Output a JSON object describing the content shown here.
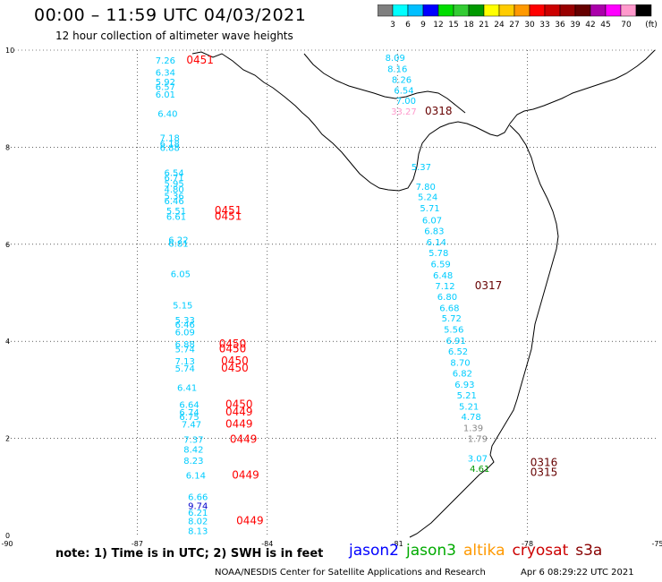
{
  "header": {
    "title": "00:00 – 11:59 UTC 04/03/2021",
    "subtitle": "12 hour collection of altimeter wave heights"
  },
  "colorbar": {
    "unit": "(ft)",
    "colors": [
      "#7f7f7f",
      "#00ffff",
      "#00bfff",
      "#0000ff",
      "#00dd00",
      "#33cc33",
      "#009900",
      "#ffff00",
      "#ffcc00",
      "#ff9900",
      "#ff0000",
      "#cc0000",
      "#990000",
      "#660000",
      "#aa00aa",
      "#ff00ff",
      "#ff99cc",
      "#000000"
    ],
    "labels": [
      "3",
      "6",
      "9",
      "12",
      "15",
      "18",
      "21",
      "24",
      "27",
      "30",
      "33",
      "36",
      "39",
      "42",
      "45",
      "70"
    ]
  },
  "axes": {
    "x_labels": [
      "-90",
      "-87",
      "-84",
      "-81",
      "-78",
      "-75"
    ],
    "y_labels": [
      "0",
      "2",
      "4",
      "6",
      "8",
      "10"
    ],
    "x_range": [
      -90,
      -75
    ],
    "y_range": [
      0,
      10
    ]
  },
  "tracks": {
    "left_swh": [
      {
        "v": "7.26",
        "lon": -86.35,
        "lat": 9.8,
        "c": "#00ccff"
      },
      {
        "v": "6.34",
        "lon": -86.35,
        "lat": 9.55,
        "c": "#00ccff"
      },
      {
        "v": "5.92",
        "lon": -86.35,
        "lat": 9.35,
        "c": "#00ccff"
      },
      {
        "v": "6.57",
        "lon": -86.35,
        "lat": 9.25,
        "c": "#00ccff"
      },
      {
        "v": "6.01",
        "lon": -86.35,
        "lat": 9.1,
        "c": "#00ccff"
      },
      {
        "v": "6.40",
        "lon": -86.3,
        "lat": 8.7,
        "c": "#00ccff"
      },
      {
        "v": "7.18",
        "lon": -86.25,
        "lat": 8.2,
        "c": "#00ccff"
      },
      {
        "v": "6.18",
        "lon": -86.25,
        "lat": 8.08,
        "c": "#00ccff"
      },
      {
        "v": "6.88",
        "lon": -86.25,
        "lat": 8.0,
        "c": "#00ccff"
      },
      {
        "v": "6.54",
        "lon": -86.15,
        "lat": 7.48,
        "c": "#00ccff"
      },
      {
        "v": "6.71",
        "lon": -86.15,
        "lat": 7.38,
        "c": "#00ccff"
      },
      {
        "v": "5.95",
        "lon": -86.15,
        "lat": 7.26,
        "c": "#00ccff"
      },
      {
        "v": "4.80",
        "lon": -86.15,
        "lat": 7.14,
        "c": "#00ccff"
      },
      {
        "v": "5.36",
        "lon": -86.15,
        "lat": 7.0,
        "c": "#00ccff"
      },
      {
        "v": "6.46",
        "lon": -86.15,
        "lat": 6.9,
        "c": "#00ccff"
      },
      {
        "v": "5.51",
        "lon": -86.1,
        "lat": 6.7,
        "c": "#00ccff"
      },
      {
        "v": "6.61",
        "lon": -86.1,
        "lat": 6.58,
        "c": "#00ccff"
      },
      {
        "v": "6.22",
        "lon": -86.05,
        "lat": 6.1,
        "c": "#00ccff"
      },
      {
        "v": "6.81",
        "lon": -86.05,
        "lat": 6.02,
        "c": "#00ccff"
      },
      {
        "v": "6.05",
        "lon": -86.0,
        "lat": 5.4,
        "c": "#00ccff"
      },
      {
        "v": "5.15",
        "lon": -85.95,
        "lat": 4.75,
        "c": "#00ccff"
      },
      {
        "v": "5.33",
        "lon": -85.9,
        "lat": 4.45,
        "c": "#00ccff"
      },
      {
        "v": "6.46",
        "lon": -85.9,
        "lat": 4.35,
        "c": "#00ccff"
      },
      {
        "v": "6.09",
        "lon": -85.9,
        "lat": 4.2,
        "c": "#00ccff"
      },
      {
        "v": "6.88",
        "lon": -85.9,
        "lat": 3.95,
        "c": "#00ccff"
      },
      {
        "v": "5.74",
        "lon": -85.9,
        "lat": 3.85,
        "c": "#00ccff"
      },
      {
        "v": "7.13",
        "lon": -85.9,
        "lat": 3.6,
        "c": "#00ccff"
      },
      {
        "v": "5.74",
        "lon": -85.9,
        "lat": 3.45,
        "c": "#00ccff"
      },
      {
        "v": "6.41",
        "lon": -85.85,
        "lat": 3.05,
        "c": "#00ccff"
      },
      {
        "v": "6.64",
        "lon": -85.8,
        "lat": 2.7,
        "c": "#00ccff"
      },
      {
        "v": "6.74",
        "lon": -85.8,
        "lat": 2.55,
        "c": "#00ccff"
      },
      {
        "v": "6.75",
        "lon": -85.8,
        "lat": 2.45,
        "c": "#00ccff"
      },
      {
        "v": "7.47",
        "lon": -85.75,
        "lat": 2.3,
        "c": "#00ccff"
      },
      {
        "v": "7.37",
        "lon": -85.7,
        "lat": 1.98,
        "c": "#00ccff"
      },
      {
        "v": "8.42",
        "lon": -85.7,
        "lat": 1.78,
        "c": "#00ccff"
      },
      {
        "v": "8.23",
        "lon": -85.7,
        "lat": 1.55,
        "c": "#00ccff"
      },
      {
        "v": "6.14",
        "lon": -85.65,
        "lat": 1.25,
        "c": "#00ccff"
      },
      {
        "v": "6.66",
        "lon": -85.6,
        "lat": 0.8,
        "c": "#00ccff"
      },
      {
        "v": "9.74",
        "lon": -85.6,
        "lat": 0.62,
        "c": "#0000cc"
      },
      {
        "v": "6.21",
        "lon": -85.6,
        "lat": 0.48,
        "c": "#00ccff"
      },
      {
        "v": "8.02",
        "lon": -85.6,
        "lat": 0.3,
        "c": "#00ccff"
      },
      {
        "v": "8.13",
        "lon": -85.6,
        "lat": 0.1,
        "c": "#00ccff"
      }
    ],
    "right_swh": [
      {
        "v": "8.09",
        "lon": -81.05,
        "lat": 9.85,
        "c": "#00ccff"
      },
      {
        "v": "8.16",
        "lon": -81.0,
        "lat": 9.62,
        "c": "#00ccff"
      },
      {
        "v": "8.26",
        "lon": -80.9,
        "lat": 9.4,
        "c": "#00ccff"
      },
      {
        "v": "6.54",
        "lon": -80.85,
        "lat": 9.18,
        "c": "#00ccff"
      },
      {
        "v": "7.00",
        "lon": -80.8,
        "lat": 8.97,
        "c": "#00ccff"
      },
      {
        "v": "33.27",
        "lon": -80.85,
        "lat": 8.75,
        "c": "#ff99cc"
      },
      {
        "v": "5.37",
        "lon": -80.45,
        "lat": 7.6,
        "c": "#00ccff"
      },
      {
        "v": "7.80",
        "lon": -80.35,
        "lat": 7.2,
        "c": "#00ccff"
      },
      {
        "v": "5.24",
        "lon": -80.3,
        "lat": 6.98,
        "c": "#00ccff"
      },
      {
        "v": "5.71",
        "lon": -80.25,
        "lat": 6.75,
        "c": "#00ccff"
      },
      {
        "v": "6.07",
        "lon": -80.2,
        "lat": 6.5,
        "c": "#00ccff"
      },
      {
        "v": "6.83",
        "lon": -80.15,
        "lat": 6.28,
        "c": "#00ccff"
      },
      {
        "v": "6.14",
        "lon": -80.1,
        "lat": 6.05,
        "c": "#00ccff"
      },
      {
        "v": "5.78",
        "lon": -80.05,
        "lat": 5.83,
        "c": "#00ccff"
      },
      {
        "v": "6.59",
        "lon": -80.0,
        "lat": 5.6,
        "c": "#00ccff"
      },
      {
        "v": "6.48",
        "lon": -79.95,
        "lat": 5.37,
        "c": "#00ccff"
      },
      {
        "v": "7.12",
        "lon": -79.9,
        "lat": 5.15,
        "c": "#00ccff"
      },
      {
        "v": "6.80",
        "lon": -79.85,
        "lat": 4.93,
        "c": "#00ccff"
      },
      {
        "v": "6.68",
        "lon": -79.8,
        "lat": 4.7,
        "c": "#00ccff"
      },
      {
        "v": "5.72",
        "lon": -79.75,
        "lat": 4.48,
        "c": "#00ccff"
      },
      {
        "v": "5.56",
        "lon": -79.7,
        "lat": 4.25,
        "c": "#00ccff"
      },
      {
        "v": "6.91",
        "lon": -79.65,
        "lat": 4.02,
        "c": "#00ccff"
      },
      {
        "v": "6.52",
        "lon": -79.6,
        "lat": 3.8,
        "c": "#00ccff"
      },
      {
        "v": "8.70",
        "lon": -79.55,
        "lat": 3.57,
        "c": "#00ccff"
      },
      {
        "v": "6.82",
        "lon": -79.5,
        "lat": 3.35,
        "c": "#00ccff"
      },
      {
        "v": "6.93",
        "lon": -79.45,
        "lat": 3.12,
        "c": "#00ccff"
      },
      {
        "v": "5.21",
        "lon": -79.4,
        "lat": 2.9,
        "c": "#00ccff"
      },
      {
        "v": "5.21",
        "lon": -79.35,
        "lat": 2.67,
        "c": "#00ccff"
      },
      {
        "v": "4.78",
        "lon": -79.3,
        "lat": 2.45,
        "c": "#00ccff"
      },
      {
        "v": "1.39",
        "lon": -79.25,
        "lat": 2.22,
        "c": "#888888"
      },
      {
        "v": "1.79",
        "lon": -79.15,
        "lat": 2.0,
        "c": "#888888"
      },
      {
        "v": "3.07",
        "lon": -79.15,
        "lat": 1.6,
        "c": "#00ccff"
      },
      {
        "v": "4.61",
        "lon": -79.1,
        "lat": 1.38,
        "c": "#009900"
      }
    ],
    "time_tags": [
      {
        "v": "0451",
        "lon": -85.55,
        "lat": 9.8,
        "c": "#ff0000"
      },
      {
        "v": "0451",
        "lon": -84.9,
        "lat": 6.7,
        "c": "#ff0000"
      },
      {
        "v": "0451",
        "lon": -84.9,
        "lat": 6.58,
        "c": "#ff0000"
      },
      {
        "v": "0450",
        "lon": -84.8,
        "lat": 3.95,
        "c": "#ff0000"
      },
      {
        "v": "0450",
        "lon": -84.8,
        "lat": 3.85,
        "c": "#ff0000"
      },
      {
        "v": "0450",
        "lon": -84.75,
        "lat": 3.6,
        "c": "#ff0000"
      },
      {
        "v": "0450",
        "lon": -84.75,
        "lat": 3.45,
        "c": "#ff0000"
      },
      {
        "v": "0450",
        "lon": -84.65,
        "lat": 2.7,
        "c": "#ff0000"
      },
      {
        "v": "0449",
        "lon": -84.65,
        "lat": 2.55,
        "c": "#ff0000"
      },
      {
        "v": "0449",
        "lon": -84.65,
        "lat": 2.3,
        "c": "#ff0000"
      },
      {
        "v": "0449",
        "lon": -84.55,
        "lat": 1.98,
        "c": "#ff0000"
      },
      {
        "v": "0449",
        "lon": -84.5,
        "lat": 1.25,
        "c": "#ff0000"
      },
      {
        "v": "0449",
        "lon": -84.4,
        "lat": 0.3,
        "c": "#ff0000"
      },
      {
        "v": "0318",
        "lon": -80.05,
        "lat": 8.75,
        "c": "#660000"
      },
      {
        "v": "0317",
        "lon": -78.9,
        "lat": 5.15,
        "c": "#660000"
      },
      {
        "v": "0316",
        "lon": -77.62,
        "lat": 1.5,
        "c": "#660000"
      },
      {
        "v": "0315",
        "lon": -77.62,
        "lat": 1.3,
        "c": "#660000"
      }
    ]
  },
  "note": "note:  1) Time is in UTC;  2) SWH is in feet",
  "legend": [
    {
      "label": "jason2",
      "c": "#0000ff"
    },
    {
      "label": "jason3",
      "c": "#00aa00"
    },
    {
      "label": "altika",
      "c": "#ff9900"
    },
    {
      "label": "cryosat",
      "c": "#cc0000"
    },
    {
      "label": "s3a",
      "c": "#880000"
    }
  ],
  "footer": {
    "credit": "NOAA/NESDIS Center for Satellite Applications and Research",
    "generated": "Apr  6 08:29:22 UTC 2021"
  }
}
